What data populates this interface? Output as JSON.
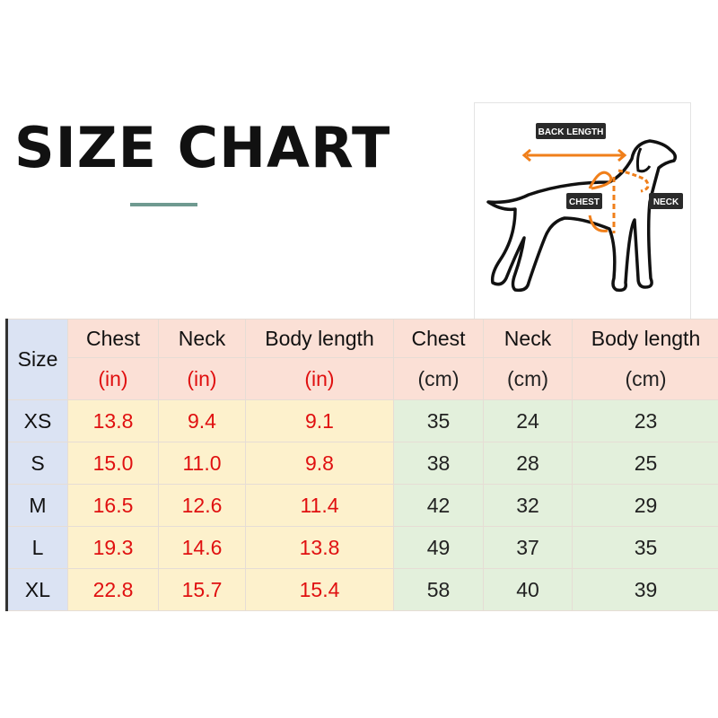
{
  "title": "SIZE CHART",
  "diagram": {
    "labels": {
      "back": "BACK LENGTH",
      "chest": "CHEST",
      "neck": "NECK"
    },
    "accent": "#f07f1a"
  },
  "table": {
    "size_header": "Size",
    "headers": [
      "Chest",
      "Neck",
      "Body length",
      "Chest",
      "Neck",
      "Body length"
    ],
    "units": [
      "(in)",
      "(in)",
      "(in)",
      "(cm)",
      "(cm)",
      "(cm)"
    ],
    "rows": [
      {
        "size": "XS",
        "values": [
          "13.8",
          "9.4",
          "9.1",
          "35",
          "24",
          "23"
        ]
      },
      {
        "size": "S",
        "values": [
          "15.0",
          "11.0",
          "9.8",
          "38",
          "28",
          "25"
        ]
      },
      {
        "size": "M",
        "values": [
          "16.5",
          "12.6",
          "11.4",
          "42",
          "32",
          "29"
        ]
      },
      {
        "size": "L",
        "values": [
          "19.3",
          "14.6",
          "13.8",
          "49",
          "37",
          "35"
        ]
      },
      {
        "size": "XL",
        "values": [
          "22.8",
          "15.7",
          "15.4",
          "58",
          "40",
          "39"
        ]
      }
    ]
  },
  "colors": {
    "header": "#fbe0d6",
    "size_col": "#dbe3f3",
    "inch_cells": "#fdf1cc",
    "cm_cells": "#e3f0dc",
    "inch_text": "#e01010"
  }
}
